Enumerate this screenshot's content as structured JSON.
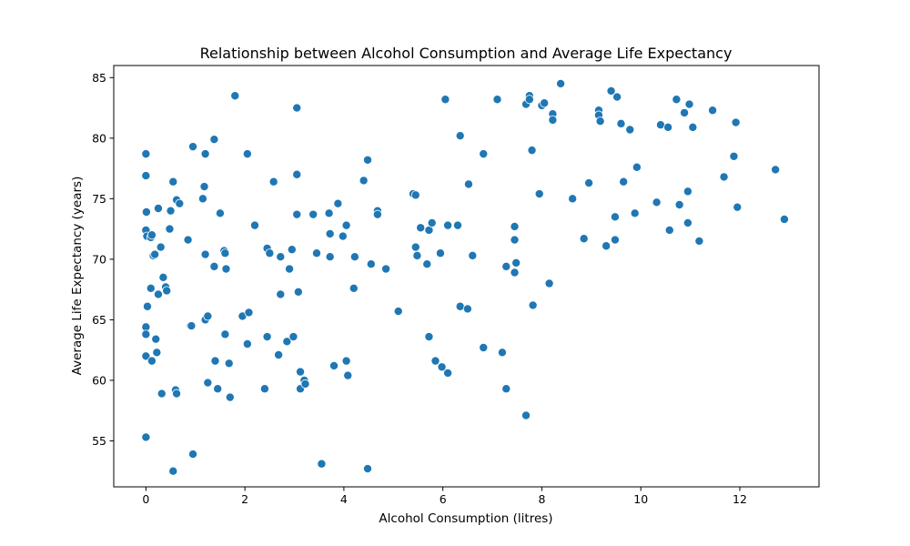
{
  "chart_data": {
    "type": "scatter",
    "title": "Relationship between Alcohol Consumption and Average Life Expectancy",
    "xlabel": "Alcohol Consumption (litres)",
    "ylabel": "Average Life Expectancy (years)",
    "xlim": [
      -0.65,
      13.6
    ],
    "ylim": [
      51.2,
      86.0
    ],
    "xticks": [
      0,
      2,
      4,
      6,
      8,
      10,
      12
    ],
    "yticks": [
      55,
      60,
      65,
      70,
      75,
      80,
      85
    ],
    "grid": false,
    "marker_color": "#1f77b4",
    "marker_edge_color": "#ffffff",
    "points": [
      [
        0.0,
        78.7
      ],
      [
        0.0,
        76.9
      ],
      [
        0.01,
        73.9
      ],
      [
        0.0,
        72.4
      ],
      [
        0.02,
        71.9
      ],
      [
        0.1,
        71.8
      ],
      [
        0.12,
        72.0
      ],
      [
        0.1,
        67.6
      ],
      [
        0.03,
        66.1
      ],
      [
        0.0,
        64.4
      ],
      [
        0.0,
        63.8
      ],
      [
        0.0,
        62.0
      ],
      [
        0.0,
        55.3
      ],
      [
        0.15,
        70.3
      ],
      [
        0.18,
        70.4
      ],
      [
        0.12,
        61.6
      ],
      [
        0.2,
        63.4
      ],
      [
        0.22,
        62.3
      ],
      [
        0.25,
        74.2
      ],
      [
        0.3,
        71.0
      ],
      [
        0.25,
        67.1
      ],
      [
        0.35,
        68.5
      ],
      [
        0.4,
        67.7
      ],
      [
        0.42,
        67.4
      ],
      [
        0.32,
        58.9
      ],
      [
        0.48,
        72.5
      ],
      [
        0.55,
        76.4
      ],
      [
        0.5,
        74.0
      ],
      [
        0.62,
        74.9
      ],
      [
        0.68,
        74.6
      ],
      [
        0.6,
        59.2
      ],
      [
        0.62,
        58.9
      ],
      [
        0.55,
        52.5
      ],
      [
        0.85,
        71.6
      ],
      [
        0.9,
        64.5
      ],
      [
        0.92,
        64.5
      ],
      [
        0.95,
        79.3
      ],
      [
        0.95,
        53.9
      ],
      [
        1.15,
        75.0
      ],
      [
        1.18,
        76.0
      ],
      [
        1.2,
        78.7
      ],
      [
        1.2,
        70.4
      ],
      [
        1.2,
        65.0
      ],
      [
        1.25,
        65.3
      ],
      [
        1.25,
        59.8
      ],
      [
        1.38,
        79.9
      ],
      [
        1.38,
        69.4
      ],
      [
        1.4,
        61.6
      ],
      [
        1.45,
        59.3
      ],
      [
        1.5,
        73.8
      ],
      [
        1.58,
        70.7
      ],
      [
        1.6,
        70.5
      ],
      [
        1.62,
        69.2
      ],
      [
        1.6,
        63.8
      ],
      [
        1.68,
        61.4
      ],
      [
        1.7,
        58.6
      ],
      [
        1.8,
        83.5
      ],
      [
        1.95,
        65.3
      ],
      [
        2.05,
        78.7
      ],
      [
        2.05,
        63.0
      ],
      [
        2.08,
        65.6
      ],
      [
        2.2,
        72.8
      ],
      [
        2.4,
        59.3
      ],
      [
        2.45,
        70.9
      ],
      [
        2.45,
        63.6
      ],
      [
        2.5,
        70.5
      ],
      [
        2.58,
        76.4
      ],
      [
        2.68,
        62.1
      ],
      [
        2.72,
        70.2
      ],
      [
        2.72,
        67.1
      ],
      [
        2.85,
        63.2
      ],
      [
        2.9,
        69.2
      ],
      [
        2.95,
        70.8
      ],
      [
        2.98,
        63.6
      ],
      [
        3.05,
        82.5
      ],
      [
        3.05,
        77.0
      ],
      [
        3.05,
        73.7
      ],
      [
        3.08,
        67.3
      ],
      [
        3.12,
        60.7
      ],
      [
        3.12,
        59.3
      ],
      [
        3.2,
        60.0
      ],
      [
        3.22,
        59.7
      ],
      [
        3.38,
        73.7
      ],
      [
        3.45,
        70.5
      ],
      [
        3.55,
        53.1
      ],
      [
        3.7,
        73.8
      ],
      [
        3.72,
        72.1
      ],
      [
        3.72,
        70.2
      ],
      [
        3.8,
        61.2
      ],
      [
        3.88,
        74.6
      ],
      [
        3.98,
        71.9
      ],
      [
        4.05,
        72.8
      ],
      [
        4.05,
        61.6
      ],
      [
        4.08,
        60.4
      ],
      [
        4.2,
        67.6
      ],
      [
        4.22,
        70.2
      ],
      [
        4.4,
        76.5
      ],
      [
        4.48,
        78.2
      ],
      [
        4.55,
        69.6
      ],
      [
        4.48,
        52.7
      ],
      [
        4.68,
        74.0
      ],
      [
        4.68,
        73.7
      ],
      [
        4.85,
        69.2
      ],
      [
        5.1,
        65.7
      ],
      [
        5.4,
        75.4
      ],
      [
        5.45,
        75.3
      ],
      [
        5.45,
        71.0
      ],
      [
        5.48,
        70.3
      ],
      [
        5.55,
        72.6
      ],
      [
        5.68,
        69.6
      ],
      [
        5.72,
        72.4
      ],
      [
        5.78,
        73.0
      ],
      [
        5.72,
        63.6
      ],
      [
        5.85,
        61.6
      ],
      [
        5.95,
        70.5
      ],
      [
        5.98,
        61.1
      ],
      [
        6.05,
        83.2
      ],
      [
        6.1,
        72.8
      ],
      [
        6.1,
        60.6
      ],
      [
        6.3,
        72.8
      ],
      [
        6.35,
        80.2
      ],
      [
        6.35,
        66.1
      ],
      [
        6.5,
        65.9
      ],
      [
        6.52,
        76.2
      ],
      [
        6.6,
        70.3
      ],
      [
        6.82,
        78.7
      ],
      [
        6.82,
        62.7
      ],
      [
        7.1,
        83.2
      ],
      [
        7.2,
        62.3
      ],
      [
        7.28,
        69.4
      ],
      [
        7.28,
        59.3
      ],
      [
        7.45,
        72.7
      ],
      [
        7.45,
        71.6
      ],
      [
        7.45,
        68.9
      ],
      [
        7.48,
        69.7
      ],
      [
        7.68,
        82.8
      ],
      [
        7.75,
        83.5
      ],
      [
        7.75,
        83.2
      ],
      [
        7.68,
        57.1
      ],
      [
        7.8,
        79.0
      ],
      [
        7.82,
        66.2
      ],
      [
        7.95,
        75.4
      ],
      [
        8.0,
        82.7
      ],
      [
        8.05,
        82.9
      ],
      [
        8.15,
        68.0
      ],
      [
        8.22,
        82.0
      ],
      [
        8.22,
        81.5
      ],
      [
        8.38,
        84.5
      ],
      [
        8.62,
        75.0
      ],
      [
        8.85,
        71.7
      ],
      [
        8.95,
        76.3
      ],
      [
        9.15,
        82.3
      ],
      [
        9.15,
        81.9
      ],
      [
        9.18,
        81.4
      ],
      [
        9.3,
        71.1
      ],
      [
        9.4,
        83.9
      ],
      [
        9.48,
        73.5
      ],
      [
        9.48,
        71.6
      ],
      [
        9.52,
        83.4
      ],
      [
        9.6,
        81.2
      ],
      [
        9.65,
        76.4
      ],
      [
        9.78,
        80.7
      ],
      [
        9.88,
        73.8
      ],
      [
        9.92,
        77.6
      ],
      [
        10.32,
        74.7
      ],
      [
        10.4,
        81.1
      ],
      [
        10.55,
        80.9
      ],
      [
        10.58,
        72.4
      ],
      [
        10.72,
        83.2
      ],
      [
        10.78,
        74.5
      ],
      [
        10.88,
        82.1
      ],
      [
        10.95,
        75.6
      ],
      [
        10.95,
        73.0
      ],
      [
        10.98,
        82.8
      ],
      [
        11.05,
        80.9
      ],
      [
        11.18,
        71.5
      ],
      [
        11.45,
        82.3
      ],
      [
        11.68,
        76.8
      ],
      [
        11.88,
        78.5
      ],
      [
        11.92,
        81.3
      ],
      [
        11.95,
        74.3
      ],
      [
        12.72,
        77.4
      ],
      [
        12.9,
        73.3
      ]
    ]
  }
}
